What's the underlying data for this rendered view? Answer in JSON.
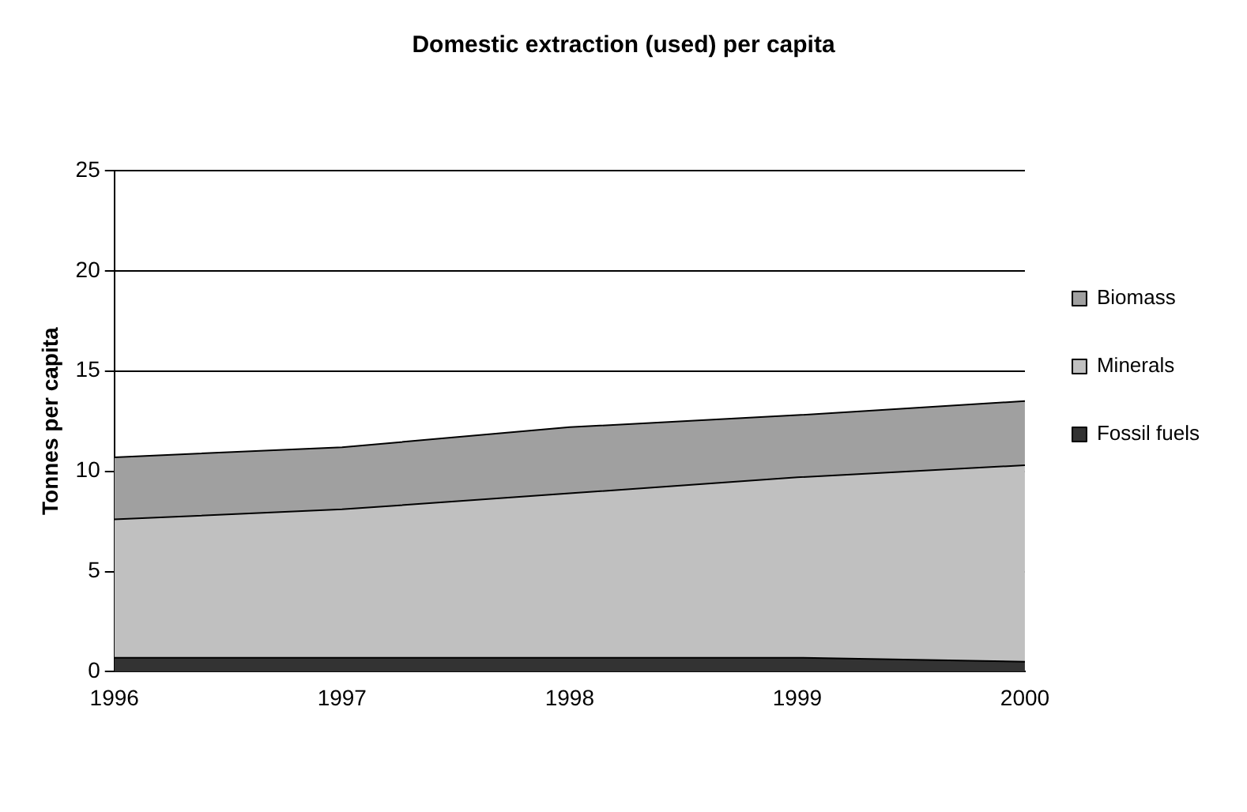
{
  "chart_data": {
    "type": "area",
    "title": "Domestic extraction (used) per capita",
    "ylabel": "Tonnes per capita",
    "categories": [
      "1996",
      "1997",
      "1998",
      "1999",
      "2000"
    ],
    "stacked": true,
    "ylim": [
      0,
      25
    ],
    "yticks": [
      0,
      5,
      10,
      15,
      20,
      25
    ],
    "grid": "y",
    "legend": "right",
    "series": [
      {
        "name": "Fossil fuels",
        "color": "#333333",
        "values": [
          0.7,
          0.7,
          0.7,
          0.7,
          0.5
        ]
      },
      {
        "name": "Minerals",
        "color": "#c0c0c0",
        "values": [
          6.9,
          7.4,
          8.2,
          9.0,
          9.8
        ]
      },
      {
        "name": "Biomass",
        "color": "#a0a0a0",
        "values": [
          3.1,
          3.1,
          3.3,
          3.1,
          3.2
        ]
      }
    ]
  }
}
